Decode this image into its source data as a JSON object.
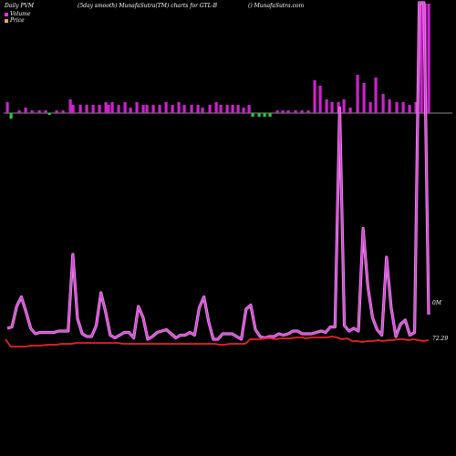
{
  "header": {
    "left": "Daily PVM",
    "middle": "(5day smooth) MunafaSutra(TM) charts for GTL-B",
    "right": "() MunafaSutra.com"
  },
  "legend": [
    {
      "label": "Volume",
      "color": "#e62ee6"
    },
    {
      "label": "Price",
      "color": "#f5a060"
    }
  ],
  "chart_data": {
    "type": "bar",
    "volume_label": "0M",
    "price_label": "72.29",
    "colors": {
      "up": "#cc22cc",
      "down": "#22cc44",
      "pvm": "#cc44cc",
      "price": "#ee2222",
      "baseline": "#bbbbbb"
    },
    "volume_bars": [
      [
        6,
        1
      ],
      [
        10,
        0
      ],
      [
        19,
        1
      ],
      [
        26,
        1
      ],
      [
        33,
        1
      ],
      [
        41,
        1
      ],
      [
        48,
        1
      ],
      [
        52,
        0
      ],
      [
        60,
        1
      ],
      [
        67,
        1
      ],
      [
        75,
        1
      ],
      [
        78,
        1
      ],
      [
        86,
        1
      ],
      [
        93,
        1
      ],
      [
        100,
        1
      ],
      [
        107,
        1
      ],
      [
        114,
        1
      ],
      [
        117,
        1
      ],
      [
        121,
        1
      ],
      [
        128,
        1
      ],
      [
        135,
        1
      ],
      [
        141,
        1
      ],
      [
        148,
        1
      ],
      [
        155,
        1
      ],
      [
        159,
        1
      ],
      [
        166,
        1
      ],
      [
        173,
        1
      ],
      [
        180,
        1
      ],
      [
        187,
        1
      ],
      [
        194,
        1
      ],
      [
        200,
        1
      ],
      [
        208,
        1
      ],
      [
        215,
        1
      ],
      [
        220,
        1
      ],
      [
        228,
        1
      ],
      [
        235,
        1
      ],
      [
        240,
        1
      ],
      [
        247,
        1
      ],
      [
        253,
        1
      ],
      [
        259,
        1
      ],
      [
        265,
        1
      ],
      [
        271,
        1
      ],
      [
        275,
        0
      ],
      [
        282,
        0
      ],
      [
        288,
        0
      ],
      [
        294,
        0
      ],
      [
        302,
        1
      ],
      [
        308,
        1
      ],
      [
        314,
        1
      ],
      [
        322,
        1
      ],
      [
        329,
        1
      ],
      [
        336,
        1
      ],
      [
        343,
        1
      ],
      [
        349,
        1
      ],
      [
        356,
        1
      ],
      [
        362,
        1
      ],
      [
        369,
        1
      ],
      [
        375,
        1
      ],
      [
        382,
        1
      ],
      [
        390,
        1
      ],
      [
        397,
        1
      ],
      [
        404,
        1
      ],
      [
        410,
        1
      ],
      [
        418,
        1
      ],
      [
        425,
        1
      ],
      [
        433,
        1
      ],
      [
        440,
        1
      ],
      [
        447,
        1
      ],
      [
        454,
        1
      ],
      [
        460,
        1
      ],
      [
        464,
        1
      ],
      [
        468,
        1
      ]
    ],
    "volume_values": [
      4,
      3,
      1,
      2,
      1,
      1,
      1,
      1,
      1,
      1,
      5,
      3,
      3,
      3,
      3,
      3,
      4,
      3,
      4,
      3,
      4,
      2,
      4,
      3,
      3,
      3,
      3,
      4,
      3,
      4,
      3,
      3,
      3,
      2,
      3,
      4,
      3,
      3,
      3,
      3,
      2,
      3,
      2,
      2,
      2,
      2,
      1,
      1,
      1,
      1,
      1,
      1,
      12,
      10,
      5,
      4,
      4,
      5,
      2,
      14,
      11,
      4,
      13,
      7,
      5,
      4,
      4,
      3,
      4,
      40,
      40,
      40
    ],
    "pvm_series": [
      0.12,
      0.13,
      0.28,
      0.35,
      0.24,
      0.12,
      0.08,
      0.09,
      0.09,
      0.09,
      0.09,
      0.1,
      0.1,
      0.1,
      0.66,
      0.19,
      0.08,
      0.06,
      0.06,
      0.14,
      0.38,
      0.24,
      0.07,
      0.05,
      0.07,
      0.09,
      0.09,
      0.05,
      0.28,
      0.2,
      0.04,
      0.06,
      0.09,
      0.1,
      0.11,
      0.08,
      0.05,
      0.07,
      0.07,
      0.09,
      0.07,
      0.27,
      0.35,
      0.17,
      0.04,
      0.04,
      0.08,
      0.08,
      0.08,
      0.06,
      0.04,
      0.26,
      0.29,
      0.11,
      0.06,
      0.05,
      0.06,
      0.06,
      0.08,
      0.07,
      0.08,
      0.1,
      0.1,
      0.08,
      0.08,
      0.08,
      0.09,
      0.1,
      0.09,
      0.13,
      0.13,
      1.73,
      0.14,
      0.1,
      0.12,
      0.1,
      0.85,
      0.43,
      0.2,
      0.11,
      0.07,
      0.64,
      0.27,
      0.06,
      0.15,
      0.18,
      0.07,
      0.09,
      2.5,
      2.5,
      0.22
    ],
    "price_series": [
      0.08,
      0.0,
      0.0,
      0.0,
      0.0,
      0.01,
      0.01,
      0.01,
      0.02,
      0.02,
      0.02,
      0.03,
      0.03,
      0.03,
      0.04,
      0.04,
      0.04,
      0.04,
      0.04,
      0.04,
      0.04,
      0.04,
      0.04,
      0.03,
      0.03,
      0.03,
      0.03,
      0.03,
      0.03,
      0.03,
      0.03,
      0.03,
      0.03,
      0.03,
      0.03,
      0.03,
      0.03,
      0.03,
      0.03,
      0.03,
      0.03,
      0.03,
      0.02,
      0.02,
      0.03,
      0.03,
      0.03,
      0.03,
      0.08,
      0.08,
      0.08,
      0.09,
      0.09,
      0.08,
      0.09,
      0.09,
      0.09,
      0.1,
      0.1,
      0.09,
      0.1,
      0.1,
      0.1,
      0.1,
      0.11,
      0.1,
      0.08,
      0.09,
      0.06,
      0.06,
      0.05,
      0.06,
      0.06,
      0.07,
      0.06,
      0.07,
      0.07,
      0.08,
      0.08,
      0.07,
      0.08,
      0.07,
      0.06,
      0.07
    ]
  }
}
